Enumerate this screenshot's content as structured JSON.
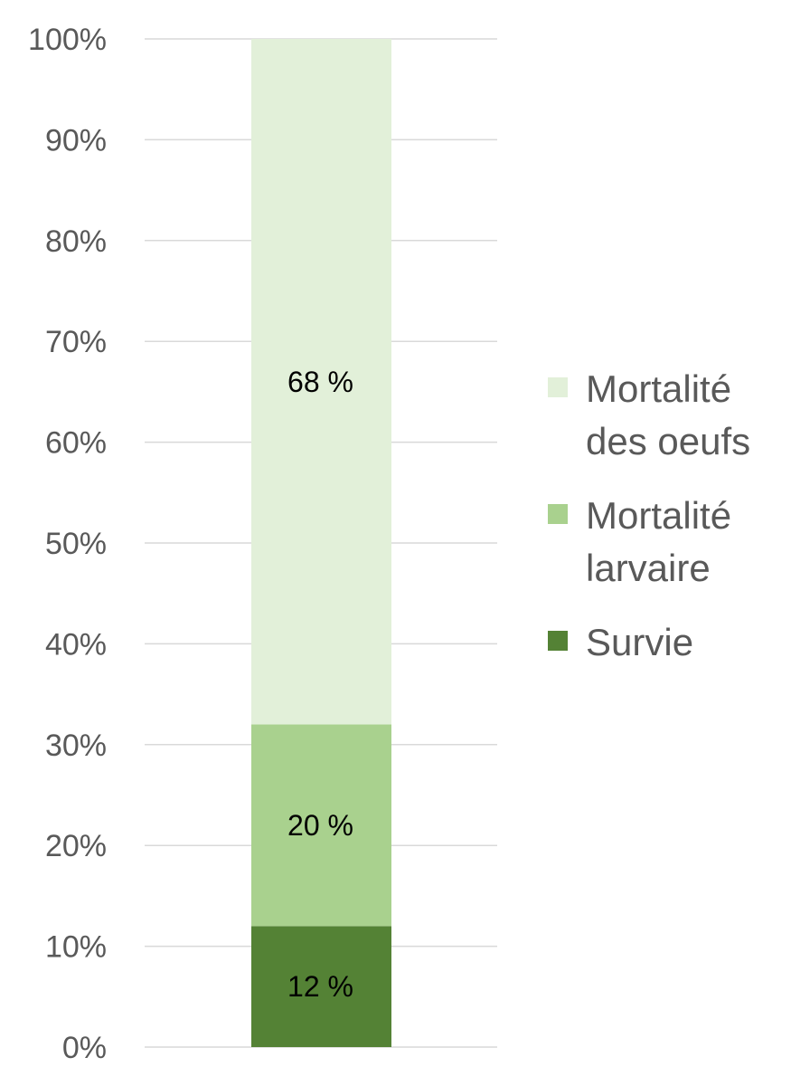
{
  "chart_data": {
    "type": "bar",
    "stacked": true,
    "percent_stacked": true,
    "categories": [
      ""
    ],
    "series": [
      {
        "name": "Survie",
        "values": [
          12
        ],
        "label": "12 %",
        "color": "#548235"
      },
      {
        "name": "Mortalité larvaire",
        "values": [
          20
        ],
        "label": "20 %",
        "color": "#a9d18e"
      },
      {
        "name": "Mortalité des oeufs",
        "values": [
          68
        ],
        "label": "68 %",
        "color": "#e2f0d9"
      }
    ],
    "ylim": [
      0,
      100
    ],
    "yticks": [
      "0%",
      "10%",
      "20%",
      "30%",
      "40%",
      "50%",
      "60%",
      "70%",
      "80%",
      "90%",
      "100%"
    ],
    "grid": true,
    "legend_position": "right",
    "legend": [
      {
        "lines": [
          "Mortalité",
          "des oeufs"
        ],
        "color": "#e2f0d9"
      },
      {
        "lines": [
          "Mortalité",
          "larvaire"
        ],
        "color": "#a9d18e"
      },
      {
        "lines": [
          "Survie"
        ],
        "color": "#548235"
      }
    ]
  }
}
